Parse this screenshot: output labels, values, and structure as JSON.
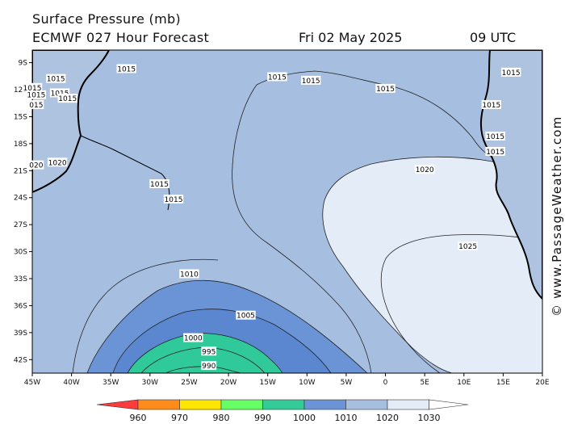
{
  "title": "Surface Pressure (mb)",
  "model": "ECMWF 027 Hour Forecast",
  "date": "Fri 02 May 2025",
  "time": "09 UTC",
  "watermark": "© www.PassageWeather.com",
  "lon_labels": [
    "45W",
    "40W",
    "35W",
    "30W",
    "25W",
    "20W",
    "15W",
    "10W",
    "5W",
    "0",
    "5E",
    "10E",
    "15E",
    "20E"
  ],
  "lat_labels": [
    "9S",
    "12S",
    "15S",
    "18S",
    "21S",
    "24S",
    "27S",
    "30S",
    "33S",
    "36S",
    "39S",
    "42S"
  ],
  "contour_labels": [
    {
      "text": "1015",
      "lon": -33.0,
      "lat": -9.7
    },
    {
      "text": "1015",
      "lon": -42.0,
      "lat": -10.8
    },
    {
      "text": "1015",
      "lon": -44.5,
      "lat": -12.6
    },
    {
      "text": "015",
      "lon": -44.5,
      "lat": -13.7
    },
    {
      "text": "1015",
      "lon": -41.5,
      "lat": -12.4
    },
    {
      "text": "1015",
      "lon": -40.5,
      "lat": -13.0
    },
    {
      "text": "1015",
      "lon": -13.8,
      "lat": -10.6
    },
    {
      "text": "1015",
      "lon": -45.0,
      "lat": -11.8
    },
    {
      "text": "1015",
      "lon": -9.5,
      "lat": -11.0
    },
    {
      "text": "1015",
      "lon": 0.0,
      "lat": -11.9
    },
    {
      "text": "1015",
      "lon": 13.5,
      "lat": -13.7
    },
    {
      "text": "1015",
      "lon": 16.0,
      "lat": -10.1
    },
    {
      "text": "1015",
      "lon": 14.0,
      "lat": -17.2
    },
    {
      "text": "1015",
      "lon": 14.0,
      "lat": -18.9
    },
    {
      "text": "020",
      "lon": -44.5,
      "lat": -20.4
    },
    {
      "text": "1020",
      "lon": -41.8,
      "lat": -20.1
    },
    {
      "text": "1015",
      "lon": -28.8,
      "lat": -22.5
    },
    {
      "text": "1015",
      "lon": -27.0,
      "lat": -24.2
    },
    {
      "text": "1020",
      "lon": 5.0,
      "lat": -20.9
    },
    {
      "text": "1025",
      "lon": 10.5,
      "lat": -29.4
    },
    {
      "text": "1010",
      "lon": -25.0,
      "lat": -32.5
    },
    {
      "text": "1005",
      "lon": -17.8,
      "lat": -37.1
    },
    {
      "text": "1000",
      "lon": -24.5,
      "lat": -39.6
    },
    {
      "text": "995",
      "lon": -22.5,
      "lat": -41.1
    },
    {
      "text": "990",
      "lon": -22.5,
      "lat": -42.7
    }
  ],
  "legend": {
    "labels": [
      "960",
      "970",
      "980",
      "990",
      "1000",
      "1010",
      "1020",
      "1030"
    ],
    "colors": [
      "#ff3b3b",
      "#ff8c1a",
      "#ffe600",
      "#66ff66",
      "#33cc99",
      "#6b94d6",
      "#a6bfe0",
      "#e4ecf7"
    ]
  },
  "colors": {
    "band_1015_1020": "#a6bfe0",
    "band_1020_plus": "#e4ecf7",
    "band_1005_1010": "#6b94d6",
    "band_1000_1005": "#5a87d0",
    "band_990_1000": "#2fc99a",
    "land": "#aec3e0",
    "coast": "#000000"
  }
}
